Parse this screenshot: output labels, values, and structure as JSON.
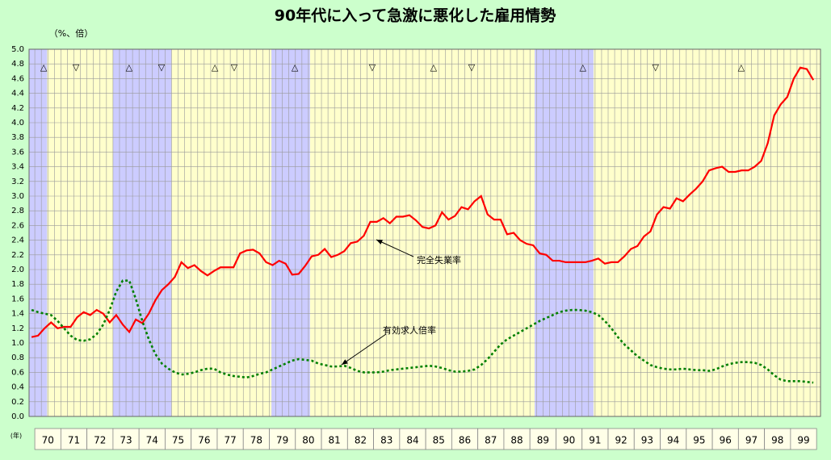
{
  "chart_data": {
    "type": "line",
    "title": "90年代に入って急激に悪化した雇用情勢",
    "y_unit": "（%、倍）",
    "x_unit": "(年)",
    "xlim": [
      69.78,
      100.15
    ],
    "ylim": [
      0,
      5
    ],
    "yticks": [
      {
        "value": 0,
        "label": "0.0"
      },
      0.2,
      0.4,
      0.6,
      0.8,
      {
        "value": 1,
        "label": "1.0"
      },
      1.2,
      1.4,
      1.6,
      1.8,
      {
        "value": 2,
        "label": "2.0"
      },
      2.2,
      2.4,
      2.6,
      2.8,
      {
        "value": 3,
        "label": "3.0"
      },
      3.2,
      3.4,
      3.6,
      3.8,
      {
        "value": 4,
        "label": "4.0"
      },
      4.2,
      4.4,
      4.6,
      4.8,
      {
        "value": 5,
        "label": "5.0"
      }
    ],
    "xticks": [
      {
        "value": 70.5,
        "label": "70"
      },
      {
        "value": 71.5,
        "label": "71"
      },
      {
        "value": 72.5,
        "label": "72"
      },
      {
        "value": 73.5,
        "label": "73"
      },
      {
        "value": 74.5,
        "label": "74"
      },
      {
        "value": 75.5,
        "label": "75"
      },
      {
        "value": 76.5,
        "label": "76"
      },
      {
        "value": 77.5,
        "label": "77"
      },
      {
        "value": 78.5,
        "label": "78"
      },
      {
        "value": 79.5,
        "label": "79"
      },
      {
        "value": 80.5,
        "label": "80"
      },
      {
        "value": 81.5,
        "label": "81"
      },
      {
        "value": 82.5,
        "label": "82"
      },
      {
        "value": 83.5,
        "label": "83"
      },
      {
        "value": 84.5,
        "label": "84"
      },
      {
        "value": 85.5,
        "label": "85"
      },
      {
        "value": 86.5,
        "label": "86"
      },
      {
        "value": 87.5,
        "label": "87"
      },
      {
        "value": 88.5,
        "label": "88"
      },
      {
        "value": 89.5,
        "label": "89"
      },
      {
        "value": 90.5,
        "label": "90"
      },
      {
        "value": 91.5,
        "label": "91"
      },
      {
        "value": 92.5,
        "label": "92"
      },
      {
        "value": 93.5,
        "label": "93"
      },
      {
        "value": 94.5,
        "label": "94"
      },
      {
        "value": 95.5,
        "label": "95"
      },
      {
        "value": 96.5,
        "label": "96"
      },
      {
        "value": 97.5,
        "label": "97"
      },
      {
        "value": 98.5,
        "label": "98"
      },
      {
        "value": 99.5,
        "label": "99"
      }
    ],
    "grid": true,
    "shaded_periods": [
      [
        69.78,
        70.47
      ],
      [
        73.0,
        75.24
      ],
      [
        79.08,
        80.56
      ],
      [
        89.18,
        91.44
      ]
    ],
    "shade_color": "#ccccff",
    "markers": [
      {
        "x": 70.34,
        "symbol": "△"
      },
      {
        "x": 71.58,
        "symbol": "▽"
      },
      {
        "x": 73.62,
        "symbol": "△"
      },
      {
        "x": 74.86,
        "symbol": "▽"
      },
      {
        "x": 76.91,
        "symbol": "△"
      },
      {
        "x": 77.65,
        "symbol": "▽"
      },
      {
        "x": 79.98,
        "symbol": "△"
      },
      {
        "x": 82.95,
        "symbol": "▽"
      },
      {
        "x": 85.3,
        "symbol": "△"
      },
      {
        "x": 86.76,
        "symbol": "▽"
      },
      {
        "x": 91.03,
        "symbol": "△"
      },
      {
        "x": 93.82,
        "symbol": "▽"
      },
      {
        "x": 97.11,
        "symbol": "△"
      }
    ],
    "x": [
      69.875,
      70.125,
      70.375,
      70.625,
      70.875,
      71.125,
      71.375,
      71.625,
      71.875,
      72.125,
      72.375,
      72.625,
      72.875,
      73.125,
      73.375,
      73.625,
      73.875,
      74.125,
      74.375,
      74.625,
      74.875,
      75.125,
      75.375,
      75.625,
      75.875,
      76.125,
      76.375,
      76.625,
      76.875,
      77.125,
      77.375,
      77.625,
      77.875,
      78.125,
      78.375,
      78.625,
      78.875,
      79.125,
      79.375,
      79.625,
      79.875,
      80.125,
      80.375,
      80.625,
      80.875,
      81.125,
      81.375,
      81.625,
      81.875,
      82.125,
      82.375,
      82.625,
      82.875,
      83.125,
      83.375,
      83.625,
      83.875,
      84.125,
      84.375,
      84.625,
      84.875,
      85.125,
      85.375,
      85.625,
      85.875,
      86.125,
      86.375,
      86.625,
      86.875,
      87.125,
      87.375,
      87.625,
      87.875,
      88.125,
      88.375,
      88.625,
      88.875,
      89.125,
      89.375,
      89.625,
      89.875,
      90.125,
      90.375,
      90.625,
      90.875,
      91.125,
      91.375,
      91.625,
      91.875,
      92.125,
      92.375,
      92.625,
      92.875,
      93.125,
      93.375,
      93.625,
      93.875,
      94.125,
      94.375,
      94.625,
      94.875,
      95.125,
      95.375,
      95.625,
      95.875,
      96.125,
      96.375,
      96.625,
      96.875,
      97.125,
      97.375,
      97.625,
      97.875,
      98.125,
      98.375,
      98.625,
      98.875,
      99.125,
      99.375,
      99.625,
      99.875
    ],
    "series": [
      {
        "name": "完全失業率",
        "color": "#ff0000",
        "dashed": false,
        "values": [
          1.08,
          1.1,
          1.2,
          1.28,
          1.2,
          1.22,
          1.22,
          1.35,
          1.42,
          1.38,
          1.45,
          1.4,
          1.28,
          1.38,
          1.25,
          1.15,
          1.32,
          1.27,
          1.4,
          1.58,
          1.72,
          1.8,
          1.9,
          2.1,
          2.02,
          2.06,
          1.98,
          1.92,
          1.98,
          2.03,
          2.03,
          2.03,
          2.22,
          2.26,
          2.27,
          2.22,
          2.1,
          2.06,
          2.12,
          2.08,
          1.93,
          1.94,
          2.05,
          2.18,
          2.2,
          2.28,
          2.17,
          2.2,
          2.25,
          2.36,
          2.38,
          2.46,
          2.65,
          2.65,
          2.7,
          2.63,
          2.72,
          2.72,
          2.74,
          2.67,
          2.58,
          2.56,
          2.6,
          2.78,
          2.68,
          2.73,
          2.85,
          2.82,
          2.93,
          3.0,
          2.75,
          2.68,
          2.68,
          2.48,
          2.5,
          2.4,
          2.35,
          2.33,
          2.22,
          2.2,
          2.12,
          2.12,
          2.1,
          2.1,
          2.1,
          2.1,
          2.12,
          2.15,
          2.08,
          2.1,
          2.1,
          2.18,
          2.28,
          2.32,
          2.45,
          2.52,
          2.75,
          2.85,
          2.83,
          2.97,
          2.93,
          3.02,
          3.1,
          3.2,
          3.35,
          3.38,
          3.4,
          3.33,
          3.33,
          3.35,
          3.35,
          3.4,
          3.48,
          3.72,
          4.1,
          4.25,
          4.35,
          4.6,
          4.75,
          4.73,
          4.58
        ]
      },
      {
        "name": "有効求人倍率",
        "color": "#008000",
        "dashed": true,
        "values": [
          1.45,
          1.42,
          1.4,
          1.38,
          1.3,
          1.2,
          1.1,
          1.04,
          1.03,
          1.05,
          1.12,
          1.25,
          1.45,
          1.7,
          1.85,
          1.85,
          1.6,
          1.3,
          1.05,
          0.85,
          0.72,
          0.65,
          0.6,
          0.57,
          0.58,
          0.6,
          0.63,
          0.65,
          0.65,
          0.6,
          0.57,
          0.55,
          0.54,
          0.53,
          0.55,
          0.58,
          0.6,
          0.64,
          0.68,
          0.72,
          0.76,
          0.78,
          0.77,
          0.76,
          0.72,
          0.7,
          0.68,
          0.68,
          0.69,
          0.66,
          0.62,
          0.6,
          0.6,
          0.6,
          0.61,
          0.63,
          0.64,
          0.65,
          0.66,
          0.67,
          0.68,
          0.69,
          0.68,
          0.66,
          0.63,
          0.61,
          0.61,
          0.62,
          0.64,
          0.7,
          0.78,
          0.88,
          0.98,
          1.05,
          1.1,
          1.15,
          1.2,
          1.25,
          1.3,
          1.34,
          1.38,
          1.42,
          1.44,
          1.45,
          1.45,
          1.44,
          1.42,
          1.38,
          1.3,
          1.2,
          1.08,
          0.98,
          0.9,
          0.82,
          0.76,
          0.7,
          0.67,
          0.65,
          0.64,
          0.64,
          0.65,
          0.64,
          0.63,
          0.63,
          0.62,
          0.64,
          0.68,
          0.71,
          0.73,
          0.74,
          0.74,
          0.73,
          0.7,
          0.64,
          0.56,
          0.5,
          0.48,
          0.48,
          0.48,
          0.47,
          0.46
        ]
      }
    ]
  }
}
